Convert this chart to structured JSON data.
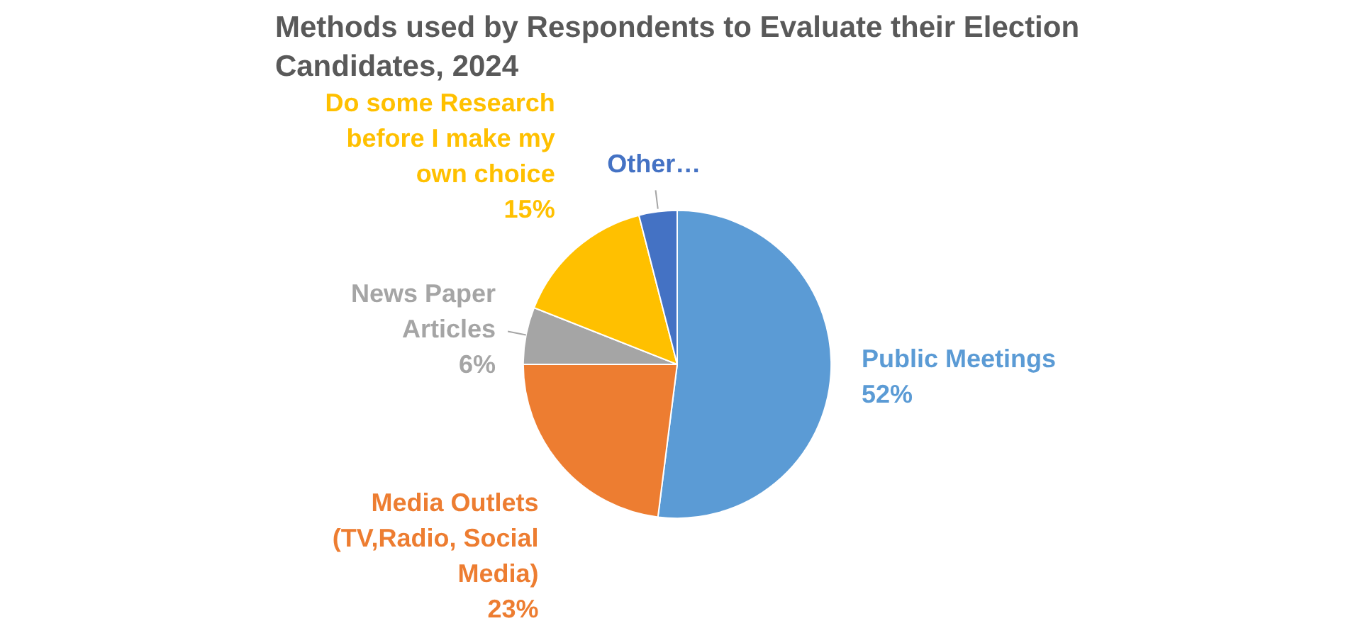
{
  "chart_data": {
    "type": "pie",
    "title": "Methods used by Respondents to Evaluate their Election Candidates, 2024",
    "categories": [
      "Public Meetings",
      "Media Outlets (TV,Radio, Social Media)",
      "News Paper Articles",
      "Do some Research before I make my own choice",
      "Other…"
    ],
    "values": [
      52,
      23,
      6,
      15,
      4
    ],
    "value_labels": [
      "52%",
      "23%",
      "6%",
      "15%",
      null
    ],
    "colors": [
      "#5b9bd5",
      "#ed7d31",
      "#a5a5a5",
      "#ffc000",
      "#4472c4"
    ]
  }
}
